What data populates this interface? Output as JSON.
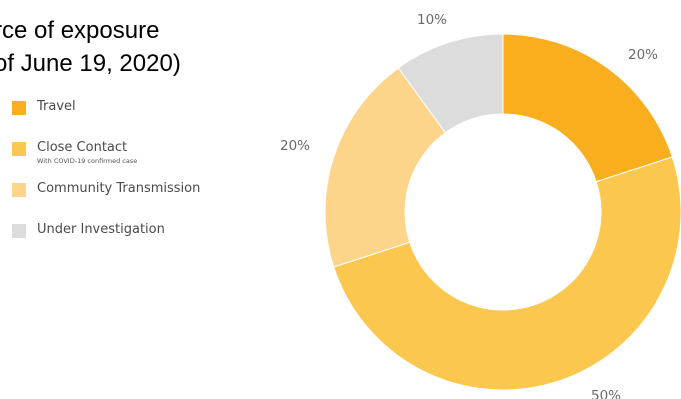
{
  "title": {
    "line1": "rce of exposure",
    "line2": "of June 19, 2020)"
  },
  "chart_data": {
    "type": "pie",
    "categories": [
      "Travel",
      "Close Contact",
      "Community Transmission",
      "Under Investigation"
    ],
    "values": [
      20,
      50,
      20,
      10
    ],
    "value_labels": [
      "20%",
      "50%",
      "20%",
      "10%"
    ],
    "colors": [
      "#f9ae1d",
      "#fbc74f",
      "#fcd58a",
      "#dcdcdc"
    ],
    "legend": [
      {
        "label": "Travel",
        "sublabel": "",
        "color": "#f9ae1d"
      },
      {
        "label": "Close Contact",
        "sublabel": "With COVID-19 confirmed case",
        "color": "#fbc74f"
      },
      {
        "label": "Community Transmission",
        "sublabel": "",
        "color": "#fcd58a"
      },
      {
        "label": "Under Investigation",
        "sublabel": "",
        "color": "#dcdcdc"
      }
    ],
    "legend_position": "left",
    "donut": true
  }
}
